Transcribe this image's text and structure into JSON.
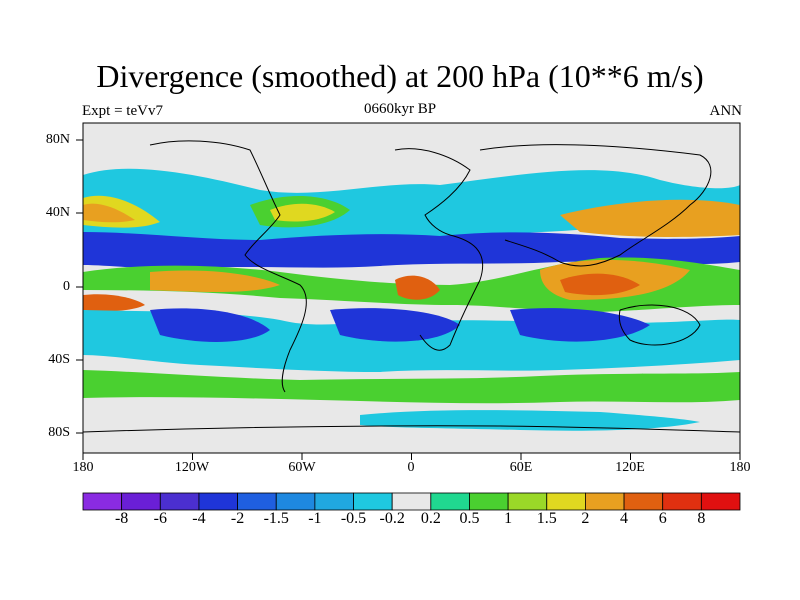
{
  "title": "Divergence (smoothed) at 200 hPa (10**6 m/s)",
  "subtitle_left": "Expt = teVv7",
  "subtitle_center": "0660kyr BP",
  "subtitle_right": "ANN",
  "y_ticks": [
    "80N",
    "40N",
    "0",
    "40S",
    "80S"
  ],
  "x_ticks": [
    "180",
    "120W",
    "60W",
    "0",
    "60E",
    "120E",
    "180"
  ],
  "colorbar": {
    "labels": [
      "-8",
      "-6",
      "-4",
      "-2",
      "-1.5",
      "-1",
      "-0.5",
      "-0.2",
      "0.2",
      "0.5",
      "1",
      "1.5",
      "2",
      "4",
      "6",
      "8"
    ],
    "colors": [
      "#8a2be2",
      "#6a1fd6",
      "#4b2fd0",
      "#1f35d8",
      "#1f5fe0",
      "#1e88e0",
      "#20a8e0",
      "#1fc8e0",
      "#e8e8e8",
      "#20d890",
      "#4ad030",
      "#9ad828",
      "#e0d820",
      "#e8a020",
      "#e06010",
      "#e03010",
      "#e01010"
    ]
  },
  "colors": {
    "neutral": "#e8e8e8",
    "neg1": "#1fc8e0",
    "neg2": "#1e88e0",
    "neg3": "#1f35d8",
    "pos1": "#20d890",
    "pos2": "#4ad030",
    "pos3": "#e0d820",
    "pos4": "#e8a020",
    "pos5": "#e06010"
  }
}
